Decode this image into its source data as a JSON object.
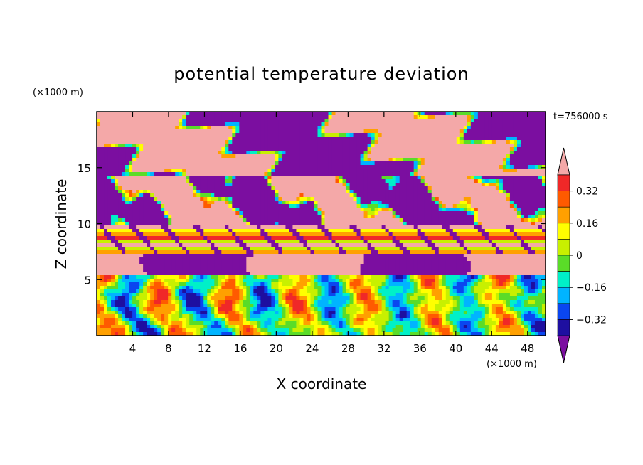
{
  "chart_data": {
    "type": "heatmap",
    "title": "potential temperature deviation",
    "xlabel": "X coordinate",
    "ylabel": "Z coordinate",
    "x_unit": "(×1000 m)",
    "y_unit": "(×1000 m)",
    "time_label": "t=756000 s",
    "xlim": [
      0,
      50
    ],
    "ylim": [
      0,
      20
    ],
    "x_ticks": [
      4,
      8,
      12,
      16,
      20,
      24,
      28,
      32,
      36,
      40,
      44,
      48
    ],
    "y_ticks": [
      5,
      10,
      15
    ],
    "colorbar": {
      "levels": [
        -0.4,
        -0.32,
        -0.24,
        -0.16,
        -0.08,
        0,
        0.08,
        0.16,
        0.24,
        0.32,
        0.4
      ],
      "labels": [
        "0.32",
        "0.16",
        "0",
        "−0.16",
        "−0.32"
      ],
      "label_values": [
        0.32,
        0.16,
        0,
        -0.16,
        -0.32
      ],
      "colors": [
        "#7b0ea0",
        "#1e0fa0",
        "#0a46f0",
        "#00b4ff",
        "#00f0c8",
        "#5adc28",
        "#c8f000",
        "#ffff00",
        "#ffa000",
        "#ff5a00",
        "#f02828",
        "#f4a8a8"
      ],
      "extend": "both"
    }
  }
}
